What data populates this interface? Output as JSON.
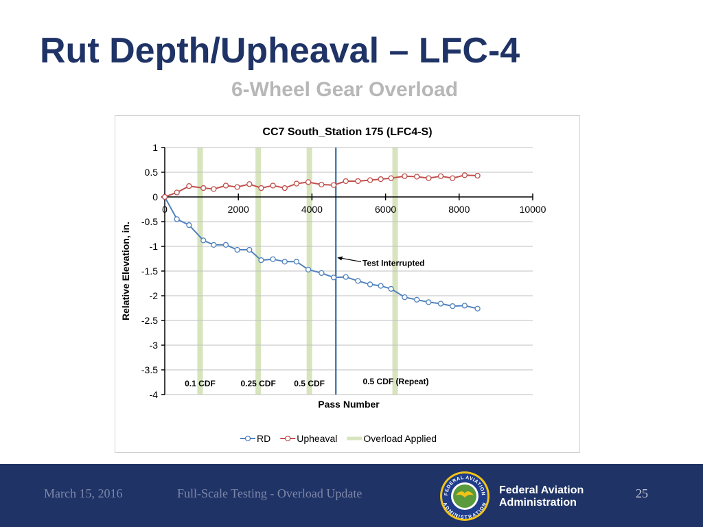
{
  "slide": {
    "title": "Rut Depth/Upheaval – LFC-4",
    "subtitle": "6-Wheel Gear Overload"
  },
  "footer": {
    "date": "March 15, 2016",
    "center_text": "Full-Scale Testing - Overload Update",
    "page_number": "25",
    "agency_line1": "Federal Aviation",
    "agency_line2": "Administration",
    "seal_text_top": "FEDERAL AVIATION",
    "seal_text_bottom": "ADMINISTRATION"
  },
  "colors": {
    "title": "#1f3366",
    "subtitle": "#b7b7b7",
    "footer_bg": "#1f3366",
    "rd_series": "#4f81bd",
    "upheaval_series": "#c0504d",
    "overload_bar": "#d7e4bd",
    "interruption_line": "#1f5c99"
  },
  "chart_data": {
    "type": "line",
    "title": "CC7 South_Station 175 (LFC4-S)",
    "xlabel": "Pass Number",
    "ylabel": "Relative Elevation, in.",
    "xlim": [
      0,
      10000
    ],
    "ylim": [
      -4,
      1
    ],
    "x_ticks": [
      "0",
      "2000",
      "4000",
      "6000",
      "8000",
      "10000"
    ],
    "y_ticks": [
      "1",
      "0.5",
      "0",
      "-0.5",
      "-1",
      "-1.5",
      "-2",
      "-2.5",
      "-3",
      "-3.5",
      "-4"
    ],
    "grid": true,
    "legend_position": "bottom",
    "series": [
      {
        "name": "RD",
        "color": "#4f81bd",
        "x": [
          0,
          330,
          660,
          1050,
          1330,
          1660,
          1970,
          2300,
          2620,
          2940,
          3260,
          3580,
          3900,
          4260,
          4590,
          4920,
          5250,
          5580,
          5870,
          6150,
          6520,
          6850,
          7170,
          7500,
          7820,
          8150,
          8500
        ],
        "y": [
          0,
          -0.45,
          -0.57,
          -0.88,
          -0.97,
          -0.97,
          -1.07,
          -1.07,
          -1.28,
          -1.26,
          -1.31,
          -1.31,
          -1.47,
          -1.54,
          -1.63,
          -1.62,
          -1.7,
          -1.77,
          -1.8,
          -1.86,
          -2.03,
          -2.08,
          -2.13,
          -2.16,
          -2.21,
          -2.2,
          -2.26
        ]
      },
      {
        "name": "Upheaval",
        "color": "#c0504d",
        "x": [
          0,
          330,
          660,
          1050,
          1330,
          1660,
          1970,
          2300,
          2620,
          2940,
          3260,
          3580,
          3900,
          4260,
          4590,
          4920,
          5250,
          5580,
          5870,
          6150,
          6520,
          6850,
          7170,
          7500,
          7820,
          8150,
          8500
        ],
        "y": [
          0,
          0.09,
          0.22,
          0.18,
          0.16,
          0.23,
          0.2,
          0.26,
          0.18,
          0.23,
          0.18,
          0.27,
          0.3,
          0.25,
          0.24,
          0.32,
          0.32,
          0.34,
          0.36,
          0.38,
          0.42,
          0.41,
          0.38,
          0.42,
          0.38,
          0.44,
          0.43
        ]
      },
      {
        "name": "Overload Applied",
        "color": "#d7e4bd",
        "x": [
          960,
          2540,
          3930,
          6260
        ]
      }
    ],
    "annotations": [
      {
        "label": "0.1 CDF",
        "x_data": 960
      },
      {
        "label": "0.25 CDF",
        "x_data": 2540
      },
      {
        "label": "0.5 CDF",
        "x_data": 3930
      },
      {
        "label": "0.5 CDF (Repeat)",
        "x_data": 6260
      }
    ],
    "interruption": {
      "label": "Test Interrupted",
      "x_data": 4650
    }
  }
}
